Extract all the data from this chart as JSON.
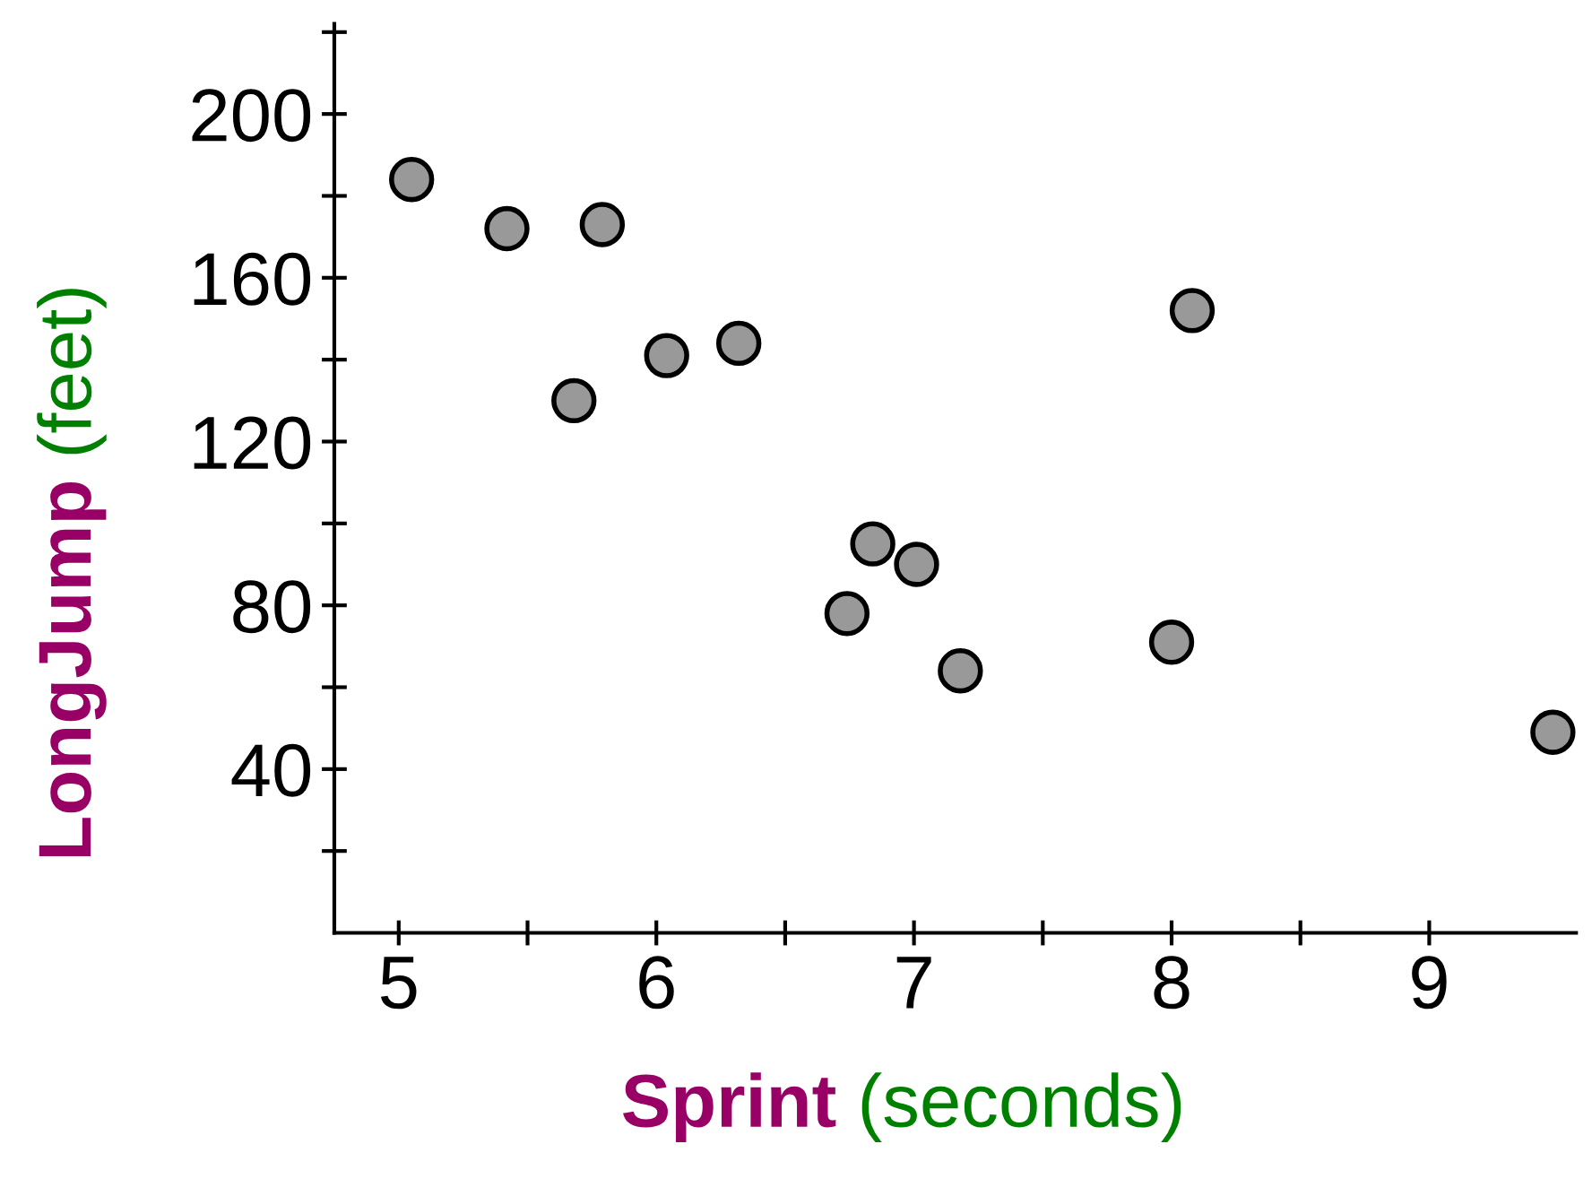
{
  "chart_data": {
    "type": "scatter",
    "xlabel": "Sprint (seconds)",
    "ylabel": "LongJump (feet)",
    "x": [
      5.05,
      5.42,
      5.79,
      5.68,
      6.04,
      6.32,
      8.08,
      6.84,
      7.01,
      6.74,
      7.18,
      8.0,
      9.48
    ],
    "series": [
      {
        "color": "#999999",
        "values": [
          184,
          172,
          173,
          130,
          141,
          144,
          152,
          95,
          90,
          78,
          64,
          71,
          49
        ]
      }
    ],
    "xlim": [
      4.75,
      9.57
    ],
    "ylim": [
      0,
      222
    ],
    "xticks": [
      5,
      {
        "value": 5.5,
        "label": null
      },
      6,
      {
        "value": 6.5,
        "label": null
      },
      7,
      {
        "value": 7.5,
        "label": null
      },
      8,
      {
        "value": 8.5,
        "label": null
      },
      9
    ],
    "yticks": [
      {
        "value": 20,
        "label": null
      },
      40,
      {
        "value": 60,
        "label": null
      },
      80,
      {
        "value": 100,
        "label": null
      },
      120,
      {
        "value": 140,
        "label": null
      },
      160,
      {
        "value": 180,
        "label": null
      },
      200,
      {
        "value": 220,
        "label": null
      }
    ],
    "marker": "circle",
    "grid": false,
    "legend": false
  }
}
